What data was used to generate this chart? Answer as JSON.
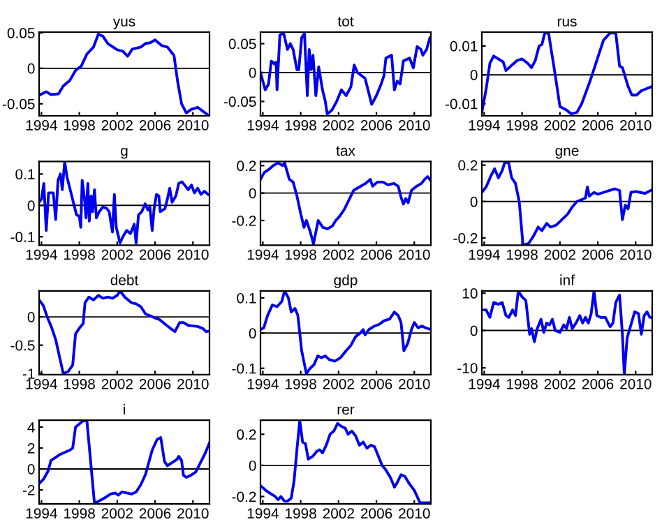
{
  "chart_data": [
    {
      "type": "line",
      "title": "yus",
      "xlim": [
        1993.75,
        2011.75
      ],
      "xticks": [
        1994,
        1998,
        2002,
        2006,
        2010
      ],
      "ylim": [
        -0.067,
        0.051
      ],
      "yticks": [
        -0.05,
        0,
        0.05
      ],
      "ref_lines": [
        {
          "axis": "y",
          "value": 0,
          "color": "#000000"
        }
      ],
      "grid": false,
      "legend": false,
      "marker": "none",
      "line_style": "solid",
      "series": [
        {
          "color": "#0000ee",
          "x": [
            1993.75,
            1994.5,
            1995,
            1995.8,
            1996.3,
            1997,
            1997.6,
            1998.2,
            1998.8,
            1999.5,
            2000,
            2000.5,
            2001,
            2002,
            2002.6,
            2003.1,
            2003.6,
            2004.5,
            2005,
            2005.5,
            2006,
            2006.7,
            2007.3,
            2008,
            2008.4,
            2008.8,
            2009.3,
            2009.8,
            2010.5,
            2011,
            2011.6
          ],
          "values": [
            -0.038,
            -0.033,
            -0.037,
            -0.036,
            -0.025,
            -0.017,
            -0.003,
            0.003,
            0.02,
            0.03,
            0.048,
            0.045,
            0.035,
            0.026,
            0.024,
            0.017,
            0.027,
            0.03,
            0.035,
            0.036,
            0.04,
            0.032,
            0.03,
            0.018,
            -0.02,
            -0.05,
            -0.063,
            -0.058,
            -0.055,
            -0.06,
            -0.066
          ]
        }
      ]
    },
    {
      "type": "line",
      "title": "tot",
      "xlim": [
        1993.75,
        2011.75
      ],
      "xticks": [
        1994,
        1998,
        2002,
        2006,
        2010
      ],
      "ylim": [
        -0.075,
        0.07
      ],
      "yticks": [
        -0.05,
        0,
        0.05
      ],
      "ref_lines": [
        {
          "axis": "y",
          "value": 0,
          "color": "#000000"
        }
      ],
      "grid": false,
      "legend": false,
      "marker": "none",
      "line_style": "solid",
      "series": [
        {
          "color": "#0000ee",
          "x": [
            1993.75,
            1994.25,
            1994.6,
            1994.9,
            1995.2,
            1995.4,
            1995.5,
            1995.8,
            1996.2,
            1996.6,
            1996.9,
            1997.2,
            1997.6,
            1997.8,
            1998.1,
            1998.4,
            1998.7,
            1998.9,
            1999.1,
            1999.3,
            1999.6,
            1999.9,
            2000.3,
            2000.6,
            2000.8,
            2001.3,
            2001.8,
            2002.3,
            2002.8,
            2003.3,
            2003.65,
            2004.0,
            2004.8,
            2005.5,
            2006.0,
            2006.5,
            2006.8,
            2007.0,
            2007.6,
            2007.9,
            2008.2,
            2008.5,
            2008.85,
            2009.5,
            2009.9,
            2010.3,
            2010.7,
            2010.9,
            2011.3,
            2011.65
          ],
          "values": [
            0,
            -0.03,
            -0.02,
            0.02,
            0.015,
            0.018,
            -0.03,
            0.065,
            0.068,
            0.04,
            0.05,
            0.04,
            0.005,
            0.005,
            0.06,
            0.068,
            -0.04,
            0.04,
            0.005,
            0.03,
            -0.04,
            0.01,
            -0.03,
            -0.05,
            -0.072,
            -0.065,
            -0.05,
            -0.03,
            -0.04,
            -0.025,
            0.013,
            0,
            -0.01,
            -0.055,
            -0.04,
            -0.02,
            -0.005,
            0.025,
            0.03,
            -0.03,
            -0.015,
            -0.02,
            0.02,
            0.025,
            0.008,
            0.045,
            0.04,
            0.03,
            0.04,
            0.06
          ]
        }
      ]
    },
    {
      "type": "line",
      "title": "rus",
      "xlim": [
        1993.75,
        2011.75
      ],
      "xticks": [
        1994,
        1998,
        2002,
        2006,
        2010
      ],
      "ylim": [
        -0.0142,
        0.0148
      ],
      "yticks": [
        -0.01,
        0,
        0.01
      ],
      "ref_lines": [
        {
          "axis": "y",
          "value": 0,
          "color": "#000000"
        }
      ],
      "grid": false,
      "legend": false,
      "marker": "none",
      "line_style": "solid",
      "series": [
        {
          "color": "#0000ee",
          "x": [
            1993.75,
            1994.2,
            1994.6,
            1995,
            1995.5,
            1996,
            1996.3,
            1996.8,
            1997.5,
            1998,
            1998.6,
            1999,
            1999.4,
            1999.8,
            2000.1,
            2000.4,
            2000.8,
            2001.5,
            2002,
            2002.6,
            2003.2,
            2003.8,
            2004.3,
            2005.2,
            2006,
            2006.6,
            2007.3,
            2007.9,
            2008.3,
            2008.6,
            2009.2,
            2009.6,
            2010.1,
            2010.6,
            2011.75
          ],
          "values": [
            -0.013,
            -0.005,
            0.004,
            0.0065,
            0.0055,
            0.0045,
            0.0015,
            0.003,
            0.005,
            0.0055,
            0.004,
            0.0025,
            0.005,
            0.01,
            0.0105,
            0.0145,
            0.0145,
            0,
            -0.011,
            -0.012,
            -0.0135,
            -0.013,
            -0.01,
            -0.002,
            0.006,
            0.012,
            0.0145,
            0.0145,
            0.003,
            0.0025,
            -0.004,
            -0.007,
            -0.007,
            -0.0055,
            -0.004
          ]
        }
      ]
    },
    {
      "type": "line",
      "title": "g",
      "xlim": [
        1993.75,
        2011.75
      ],
      "xticks": [
        1994,
        1998,
        2002,
        2006,
        2010
      ],
      "ylim": [
        -0.127,
        0.14
      ],
      "yticks": [
        -0.1,
        0,
        0.1
      ],
      "ref_lines": [
        {
          "axis": "y",
          "value": 0,
          "color": "#000000"
        }
      ],
      "grid": false,
      "legend": false,
      "marker": "none",
      "line_style": "solid",
      "series": [
        {
          "color": "#0000ee",
          "x": [
            1993.75,
            1994.0,
            1994.25,
            1994.5,
            1994.75,
            1995.25,
            1995.5,
            1995.75,
            1996.0,
            1996.2,
            1996.45,
            1996.7,
            1997.2,
            1997.7,
            1998.0,
            1998.15,
            1998.3,
            1998.55,
            1998.7,
            1998.9,
            1999.05,
            1999.25,
            1999.4,
            1999.6,
            1999.8,
            2000.1,
            2000.5,
            2000.9,
            2001.15,
            2001.5,
            2001.7,
            2001.9,
            2002.3,
            2002.6,
            2003.0,
            2003.4,
            2003.8,
            2004.0,
            2004.25,
            2004.6,
            2004.95,
            2005.25,
            2005.45,
            2005.7,
            2005.9,
            2006.15,
            2006.4,
            2006.55,
            2007.05,
            2007.3,
            2007.55,
            2007.8,
            2008.2,
            2008.5,
            2008.85,
            2009.25,
            2009.5,
            2009.85,
            2010.15,
            2010.5,
            2010.85,
            2011.2,
            2011.6
          ],
          "values": [
            0.01,
            0.02,
            0.07,
            -0.08,
            0.04,
            0.04,
            -0.045,
            0.08,
            0.1,
            0.05,
            0.14,
            0.09,
            0.03,
            -0.03,
            -0.035,
            -0.07,
            0.08,
            0.02,
            -0.04,
            0.07,
            -0.05,
            0.03,
            -0.02,
            0.05,
            -0.04,
            -0.02,
            -0.005,
            -0.01,
            -0.02,
            -0.085,
            0.035,
            -0.07,
            -0.12,
            -0.1,
            -0.08,
            -0.09,
            -0.06,
            -0.12,
            -0.03,
            -0.02,
            0.005,
            -0.015,
            -0.005,
            -0.08,
            -0.01,
            0.035,
            0.03,
            -0.02,
            -0.01,
            0.02,
            0.055,
            0.01,
            0.03,
            0.07,
            0.075,
            0.06,
            0.05,
            0.065,
            0.04,
            0.055,
            0.035,
            0.045,
            0.035
          ]
        }
      ]
    },
    {
      "type": "line",
      "title": "tax",
      "xlim": [
        1993.75,
        2011.75
      ],
      "xticks": [
        1994,
        1998,
        2002,
        2006,
        2010
      ],
      "ylim": [
        -0.38,
        0.23
      ],
      "yticks": [
        -0.2,
        0,
        0.2
      ],
      "ref_lines": [
        {
          "axis": "y",
          "value": 0,
          "color": "#000000"
        }
      ],
      "grid": false,
      "legend": false,
      "marker": "none",
      "line_style": "solid",
      "series": [
        {
          "color": "#0000ee",
          "x": [
            1993.75,
            1994.15,
            1994.6,
            1995.1,
            1995.6,
            1996.1,
            1996.3,
            1996.8,
            1997.2,
            1997.6,
            1998.0,
            1998.35,
            1998.6,
            1999.0,
            1999.35,
            1999.85,
            2000.35,
            2000.85,
            2001.35,
            2001.7,
            2002.1,
            2002.6,
            2003.1,
            2003.6,
            2004.1,
            2004.85,
            2005.35,
            2005.6,
            2006.1,
            2006.7,
            2007.2,
            2007.85,
            2008.3,
            2008.6,
            2008.85,
            2009.1,
            2009.35,
            2009.7,
            2010.25,
            2010.75,
            2011.1,
            2011.4,
            2011.75
          ],
          "values": [
            0.1,
            0.15,
            0.17,
            0.2,
            0.22,
            0.2,
            0.22,
            0.1,
            0.08,
            -0.02,
            -0.15,
            -0.25,
            -0.2,
            -0.28,
            -0.37,
            -0.2,
            -0.25,
            -0.26,
            -0.24,
            -0.2,
            -0.17,
            -0.12,
            -0.05,
            0.02,
            0.04,
            0.07,
            0.1,
            0.05,
            0.08,
            0.08,
            0.06,
            0.07,
            0.05,
            -0.03,
            -0.08,
            -0.04,
            -0.07,
            0.02,
            0.05,
            0.07,
            0.1,
            0.12,
            0.09
          ]
        }
      ]
    },
    {
      "type": "line",
      "title": "gne",
      "xlim": [
        1993.75,
        2011.75
      ],
      "xticks": [
        1994,
        1998,
        2002,
        2006,
        2010
      ],
      "ylim": [
        -0.24,
        0.22
      ],
      "yticks": [
        -0.2,
        0,
        0.2
      ],
      "ref_lines": [
        {
          "axis": "y",
          "value": 0,
          "color": "#000000"
        }
      ],
      "grid": false,
      "legend": false,
      "marker": "none",
      "line_style": "solid",
      "series": [
        {
          "color": "#0000ee",
          "x": [
            1993.75,
            1994.2,
            1994.7,
            1995.1,
            1995.5,
            1995.9,
            1996.2,
            1996.6,
            1996.9,
            1997.3,
            1997.7,
            1998.1,
            1998.7,
            1999.2,
            1999.7,
            2000.1,
            2000.6,
            2001,
            2001.6,
            2002.2,
            2002.8,
            2003.3,
            2003.8,
            2004.3,
            2004.7,
            2004.9,
            2005.1,
            2005.6,
            2006,
            2006.6,
            2007.2,
            2007.8,
            2008.3,
            2008.6,
            2008.9,
            2009.2,
            2009.5,
            2010,
            2010.5,
            2011,
            2011.75
          ],
          "values": [
            0.05,
            0.08,
            0.14,
            0.18,
            0.13,
            0.17,
            0.22,
            0.21,
            0.13,
            0.1,
            0.0,
            -0.24,
            -0.23,
            -0.19,
            -0.14,
            -0.16,
            -0.12,
            -0.14,
            -0.13,
            -0.1,
            -0.07,
            -0.03,
            0.0,
            0.01,
            0.02,
            0.08,
            0.03,
            0.05,
            0.04,
            0.05,
            0.06,
            0.07,
            0.06,
            -0.1,
            -0.02,
            -0.04,
            0.05,
            0.055,
            0.05,
            0.045,
            0.065
          ]
        }
      ]
    },
    {
      "type": "line",
      "title": "debt",
      "xlim": [
        1993.75,
        2011.75
      ],
      "xticks": [
        1994,
        1998,
        2002,
        2006,
        2010
      ],
      "ylim": [
        -1.02,
        0.46
      ],
      "yticks": [
        -1,
        -0.5,
        0
      ],
      "ref_lines": [
        {
          "axis": "y",
          "value": 0,
          "color": "#000000"
        }
      ],
      "grid": false,
      "legend": false,
      "marker": "none",
      "line_style": "solid",
      "series": [
        {
          "color": "#0000ee",
          "x": [
            1993.75,
            1994.2,
            1994.6,
            1995.1,
            1995.5,
            1995.9,
            1996.3,
            1996.8,
            1997.3,
            1997.6,
            1998,
            1998.4,
            1998.6,
            1999,
            1999.5,
            2000,
            2000.5,
            2001,
            2001.5,
            2002,
            2002.3,
            2002.8,
            2003.5,
            2004,
            2004.5,
            2005,
            2005.5,
            2006,
            2006.5,
            2007,
            2007.6,
            2008.1,
            2008.6,
            2009,
            2009.5,
            2010,
            2010.5,
            2011,
            2011.4,
            2011.75
          ],
          "values": [
            0.3,
            0.2,
            0,
            -0.2,
            -0.4,
            -0.7,
            -1.0,
            -0.97,
            -0.85,
            -0.3,
            -0.2,
            -0.12,
            0.25,
            0.35,
            0.3,
            0.38,
            0.33,
            0.35,
            0.33,
            0.38,
            0.46,
            0.35,
            0.25,
            0.23,
            0.18,
            0.05,
            0.02,
            -0.02,
            -0.05,
            -0.12,
            -0.2,
            -0.26,
            -0.1,
            -0.1,
            -0.15,
            -0.16,
            -0.17,
            -0.2,
            -0.26,
            -0.25
          ]
        }
      ]
    },
    {
      "type": "line",
      "title": "gdp",
      "xlim": [
        1993.75,
        2011.75
      ],
      "xticks": [
        1994,
        1998,
        2002,
        2006,
        2010
      ],
      "ylim": [
        -0.118,
        0.12
      ],
      "yticks": [
        -0.1,
        0,
        0.1
      ],
      "ref_lines": [
        {
          "axis": "y",
          "value": 0,
          "color": "#000000"
        }
      ],
      "grid": false,
      "legend": false,
      "marker": "none",
      "line_style": "solid",
      "series": [
        {
          "color": "#0000ee",
          "x": [
            1993.75,
            1994.1,
            1994.5,
            1995,
            1995.5,
            1996,
            1996.3,
            1996.7,
            1997,
            1997.4,
            1997.7,
            1998.1,
            1998.6,
            1999,
            1999.4,
            1999.8,
            2000.2,
            2000.6,
            2001,
            2001.6,
            2002.2,
            2002.8,
            2003.3,
            2003.8,
            2004.3,
            2004.6,
            2004.8,
            2005.2,
            2005.8,
            2006.3,
            2006.8,
            2007.4,
            2007.9,
            2008.3,
            2008.6,
            2008.9,
            2009.3,
            2009.7,
            2010,
            2010.4,
            2010.8,
            2011.2,
            2011.75
          ],
          "values": [
            0.01,
            0.015,
            0.05,
            0.08,
            0.075,
            0.09,
            0.12,
            0.1,
            0.06,
            0.07,
            0.05,
            -0.05,
            -0.115,
            -0.1,
            -0.09,
            -0.065,
            -0.07,
            -0.065,
            -0.075,
            -0.08,
            -0.07,
            -0.05,
            -0.035,
            -0.01,
            0.0,
            0.01,
            -0.005,
            0.01,
            0.02,
            0.025,
            0.035,
            0.04,
            0.06,
            0.05,
            0.03,
            -0.05,
            -0.03,
            0.01,
            0.03,
            0.015,
            0.02,
            0.015,
            0.01
          ]
        }
      ]
    },
    {
      "type": "line",
      "title": "inf",
      "xlim": [
        1993.75,
        2011.75
      ],
      "xticks": [
        1994,
        1998,
        2002,
        2006,
        2010
      ],
      "ylim": [
        -11.8,
        10.6
      ],
      "yticks": [
        -10,
        0,
        10
      ],
      "ref_lines": [
        {
          "axis": "y",
          "value": 0,
          "color": "#000000"
        }
      ],
      "grid": false,
      "legend": false,
      "marker": "none",
      "line_style": "solid",
      "series": [
        {
          "color": "#0000ee",
          "x": [
            1993.75,
            1994.2,
            1994.6,
            1995,
            1995.5,
            1995.9,
            1996.3,
            1996.6,
            1997,
            1997.3,
            1997.6,
            1998,
            1998.4,
            1998.8,
            1999,
            1999.3,
            1999.6,
            2000,
            2000.3,
            2000.6,
            2000.9,
            2001.2,
            2001.5,
            2002,
            2002.4,
            2002.7,
            2003,
            2003.3,
            2003.7,
            2004.1,
            2004.4,
            2004.7,
            2005,
            2005.3,
            2005.6,
            2005.9,
            2006.3,
            2006.8,
            2007.3,
            2007.6,
            2007.9,
            2008.3,
            2008.6,
            2008.8,
            2009.1,
            2009.5,
            2009.9,
            2010.3,
            2010.6,
            2010.9,
            2011.2,
            2011.5,
            2011.75
          ],
          "values": [
            5.5,
            5.5,
            3.5,
            7.5,
            7,
            7.5,
            4,
            3.5,
            5.5,
            4,
            10.5,
            9,
            8,
            -1,
            0.5,
            -3,
            0.5,
            3,
            -0.5,
            2,
            1.5,
            3,
            0,
            -0.5,
            1.5,
            0.5,
            3.5,
            0.5,
            2,
            4,
            2,
            3.5,
            2,
            4.5,
            10.6,
            4,
            3.5,
            3.5,
            1,
            2,
            7.5,
            9.5,
            -1,
            -11.8,
            -2,
            1.5,
            5,
            4.5,
            -1,
            4,
            5,
            3.5,
            3.5
          ]
        }
      ]
    },
    {
      "type": "line",
      "title": "i",
      "xlim": [
        1993.75,
        2011.75
      ],
      "xticks": [
        1994,
        1998,
        2002,
        2006,
        2010
      ],
      "ylim": [
        -3.35,
        4.65
      ],
      "yticks": [
        -2,
        0,
        2,
        4
      ],
      "ref_lines": [
        {
          "axis": "y",
          "value": 0,
          "color": "#000000"
        }
      ],
      "grid": false,
      "legend": false,
      "marker": "none",
      "line_style": "solid",
      "series": [
        {
          "color": "#0000ee",
          "x": [
            1993.75,
            1994.2,
            1994.7,
            1995,
            1995.5,
            1996,
            1996.5,
            1997,
            1997.3,
            1997.6,
            1998,
            1998.4,
            1998.8,
            1999.6,
            2000.2,
            2000.8,
            2001.3,
            2001.8,
            2002.1,
            2002.5,
            2003,
            2003.5,
            2004,
            2004.5,
            2005,
            2005.3,
            2005.7,
            2006.2,
            2006.6,
            2007,
            2007.3,
            2007.8,
            2008.3,
            2008.5,
            2008.8,
            2009,
            2009.3,
            2009.8,
            2010.3,
            2010.8,
            2011.3,
            2011.75
          ],
          "values": [
            -1.4,
            -1,
            -0.2,
            0.8,
            1.1,
            1.4,
            1.6,
            1.8,
            2,
            4,
            4.3,
            4.6,
            4.6,
            -3.3,
            -3,
            -2.7,
            -2.4,
            -2.3,
            -2.5,
            -2.2,
            -2.3,
            -2.4,
            -2.2,
            -1.5,
            -0.5,
            0.5,
            1.8,
            2.8,
            3,
            0.7,
            0.3,
            0.6,
            0.9,
            1.2,
            0.8,
            -0.6,
            -0.8,
            -0.6,
            -0.3,
            0.6,
            1.5,
            2.5
          ]
        }
      ]
    },
    {
      "type": "line",
      "title": "rer",
      "xlim": [
        1993.75,
        2011.75
      ],
      "xticks": [
        1994,
        1998,
        2002,
        2006,
        2010
      ],
      "ylim": [
        -0.248,
        0.29
      ],
      "yticks": [
        -0.2,
        0,
        0.2
      ],
      "ref_lines": [
        {
          "axis": "y",
          "value": 0,
          "color": "#000000"
        }
      ],
      "grid": false,
      "legend": false,
      "marker": "none",
      "line_style": "solid",
      "series": [
        {
          "color": "#0000ee",
          "x": [
            1993.75,
            1994.3,
            1994.8,
            1995.3,
            1995.6,
            1995.9,
            1996.3,
            1996.6,
            1997,
            1997.3,
            1997.6,
            1997.9,
            1998.2,
            1998.5,
            1998.8,
            1999.3,
            1999.7,
            2000,
            2000.3,
            2000.7,
            2001.1,
            2001.5,
            2001.9,
            2002.3,
            2002.7,
            2003,
            2003.4,
            2003.8,
            2004.2,
            2004.6,
            2005,
            2005.4,
            2005.8,
            2006.2,
            2006.6,
            2007,
            2007.5,
            2007.9,
            2008.2,
            2008.6,
            2009,
            2009.5,
            2010,
            2010.3,
            2010.6,
            2011.2,
            2011.75
          ],
          "values": [
            -0.13,
            -0.16,
            -0.18,
            -0.2,
            -0.22,
            -0.2,
            -0.23,
            -0.23,
            -0.21,
            -0.1,
            0.1,
            0.29,
            0.15,
            0.14,
            0.04,
            0.06,
            0.09,
            0.1,
            0.08,
            0.13,
            0.2,
            0.22,
            0.27,
            0.25,
            0.24,
            0.2,
            0.22,
            0.19,
            0.13,
            0.15,
            0.11,
            0.13,
            0.12,
            0.06,
            0.0,
            -0.03,
            -0.08,
            -0.14,
            -0.11,
            -0.06,
            -0.07,
            -0.12,
            -0.16,
            -0.2,
            -0.24,
            -0.24,
            -0.24
          ]
        }
      ]
    }
  ]
}
